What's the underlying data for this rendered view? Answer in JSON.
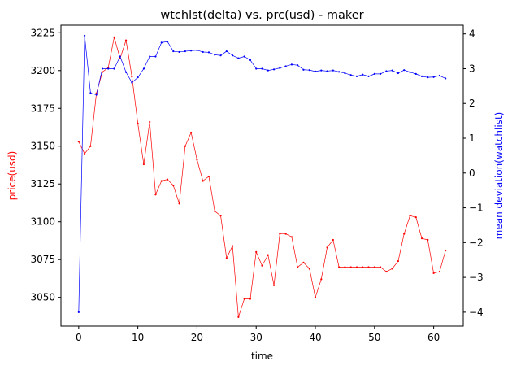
{
  "chart_data": {
    "type": "line",
    "title": "wtchlst(delta) vs. prc(usd) - maker",
    "xlabel": "time",
    "ylabel_left": "price(usd)",
    "ylabel_right": "mean deviation(watchlist)",
    "xlim": [
      -3,
      65
    ],
    "ylim_left": [
      3031,
      3230
    ],
    "ylim_right": [
      -4.4,
      4.25
    ],
    "xticks": [
      0,
      10,
      20,
      30,
      40,
      50,
      60
    ],
    "yticks_left": [
      3050,
      3075,
      3100,
      3125,
      3150,
      3175,
      3200,
      3225
    ],
    "yticks_right": [
      -4,
      -3,
      -2,
      -1,
      0,
      1,
      2,
      3,
      4
    ],
    "grid": false,
    "colors": {
      "left": "#ff0000",
      "right": "#0000ff"
    },
    "series": [
      {
        "axis": "left",
        "color": "#ff0000",
        "x": [
          0,
          1,
          2,
          3,
          4,
          5,
          6,
          7,
          8,
          9,
          10,
          11,
          12,
          13,
          14,
          15,
          16,
          17,
          18,
          19,
          20,
          21,
          22,
          23,
          24,
          25,
          26,
          27,
          28,
          29,
          30,
          31,
          32,
          33,
          34,
          35,
          36,
          37,
          38,
          39,
          40,
          41,
          42,
          43,
          44,
          45,
          46,
          47,
          48,
          49,
          50,
          51,
          52,
          53,
          54,
          55,
          56,
          57,
          58,
          59,
          60,
          61,
          62
        ],
        "values": [
          3153,
          3145,
          3150,
          3185,
          3199,
          3202,
          3222,
          3208,
          3220,
          3196,
          3165,
          3138,
          3166,
          3118,
          3127,
          3128,
          3124,
          3112,
          3150,
          3159,
          3141,
          3127,
          3130,
          3107,
          3104,
          3076,
          3084,
          3037,
          3049,
          3049,
          3080,
          3071,
          3078,
          3058,
          3092,
          3092,
          3090,
          3070,
          3073,
          3069,
          3050,
          3062,
          3083,
          3088,
          3070,
          3070,
          3070,
          3070,
          3070,
          3070,
          3070,
          3070,
          3067,
          3069,
          3074,
          3092,
          3104,
          3103,
          3089,
          3088,
          3066,
          3067,
          3081
        ]
      },
      {
        "axis": "right",
        "color": "#0000ff",
        "x": [
          0,
          1,
          2,
          3,
          4,
          5,
          6,
          7,
          8,
          9,
          10,
          11,
          12,
          13,
          14,
          15,
          16,
          17,
          18,
          19,
          20,
          21,
          22,
          23,
          24,
          25,
          26,
          27,
          28,
          29,
          30,
          31,
          32,
          33,
          34,
          35,
          36,
          37,
          38,
          39,
          40,
          41,
          42,
          43,
          44,
          45,
          46,
          47,
          48,
          49,
          50,
          51,
          52,
          53,
          54,
          55,
          56,
          57,
          58,
          59,
          60,
          61,
          62
        ],
        "values": [
          -4.0,
          3.95,
          2.3,
          2.25,
          3.0,
          3.0,
          3.0,
          3.35,
          2.9,
          2.6,
          2.75,
          3.0,
          3.35,
          3.35,
          3.75,
          3.78,
          3.5,
          3.48,
          3.5,
          3.52,
          3.53,
          3.48,
          3.47,
          3.4,
          3.38,
          3.5,
          3.38,
          3.3,
          3.35,
          3.25,
          3.0,
          3.0,
          2.95,
          2.98,
          3.02,
          3.07,
          3.12,
          3.1,
          2.97,
          2.96,
          2.92,
          2.95,
          2.93,
          2.95,
          2.91,
          2.87,
          2.82,
          2.78,
          2.83,
          2.78,
          2.85,
          2.85,
          2.93,
          2.95,
          2.87,
          2.96,
          2.9,
          2.85,
          2.78,
          2.75,
          2.76,
          2.8,
          2.72
        ]
      }
    ]
  }
}
